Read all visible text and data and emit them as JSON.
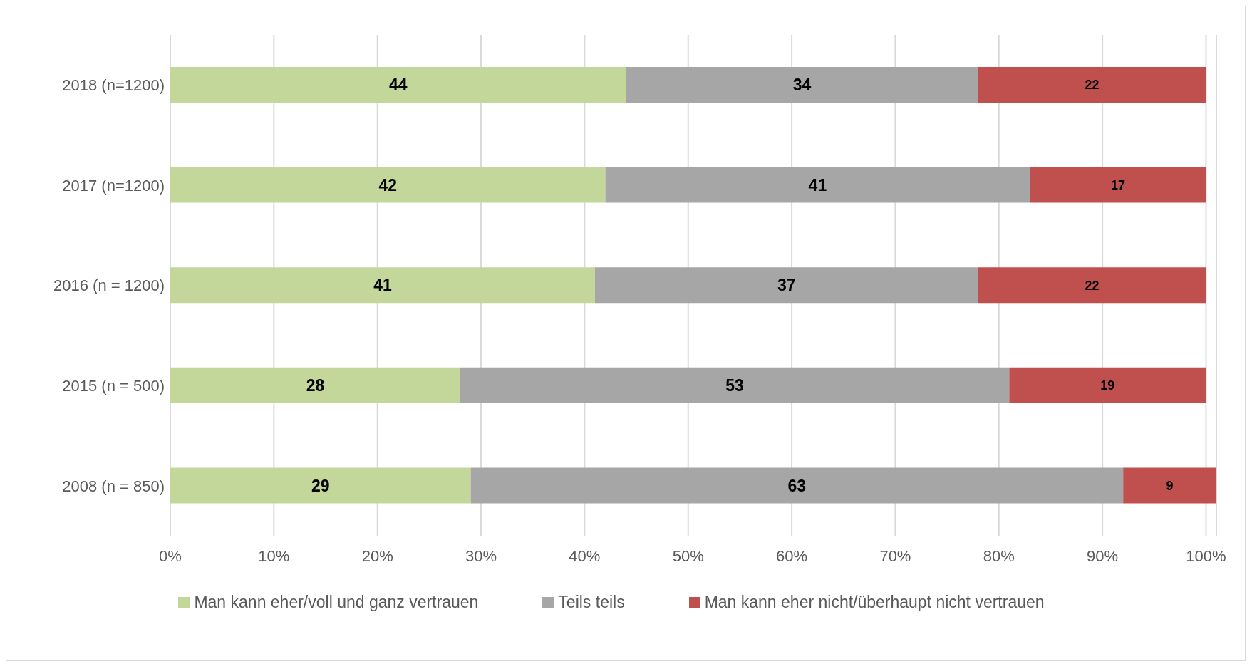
{
  "chart_data": {
    "type": "bar",
    "orientation": "horizontal",
    "stacked": true,
    "data_labels": true,
    "grid": "x",
    "legend": "bottom",
    "categories": [
      "2018 (n=1200)",
      "2017 (n=1200)",
      "2016 (n = 1200)",
      "2015 (n = 500)",
      "2008 (n = 850)"
    ],
    "series": [
      {
        "name": "Man kann eher/voll und ganz vertrauen",
        "color": "#c4d79b",
        "values": [
          44,
          42,
          41,
          28,
          29
        ]
      },
      {
        "name": "Teils teils",
        "color": "#a6a6a6",
        "values": [
          34,
          41,
          37,
          53,
          63
        ]
      },
      {
        "name": "Man kann eher nicht/überhaupt nicht vertrauen",
        "color": "#c0504d",
        "values": [
          22,
          17,
          22,
          19,
          9
        ]
      }
    ],
    "xlim": [
      0,
      101
    ],
    "xticks": [
      {
        "value": 0,
        "label": "0%"
      },
      {
        "value": 10,
        "label": "10%"
      },
      {
        "value": 20,
        "label": "20%"
      },
      {
        "value": 30,
        "label": "30%"
      },
      {
        "value": 40,
        "label": "40%"
      },
      {
        "value": 50,
        "label": "50%"
      },
      {
        "value": 60,
        "label": "60%"
      },
      {
        "value": 70,
        "label": "70%"
      },
      {
        "value": 80,
        "label": "80%"
      },
      {
        "value": 90,
        "label": "90%"
      },
      {
        "value": 100,
        "label": "100%"
      }
    ]
  }
}
